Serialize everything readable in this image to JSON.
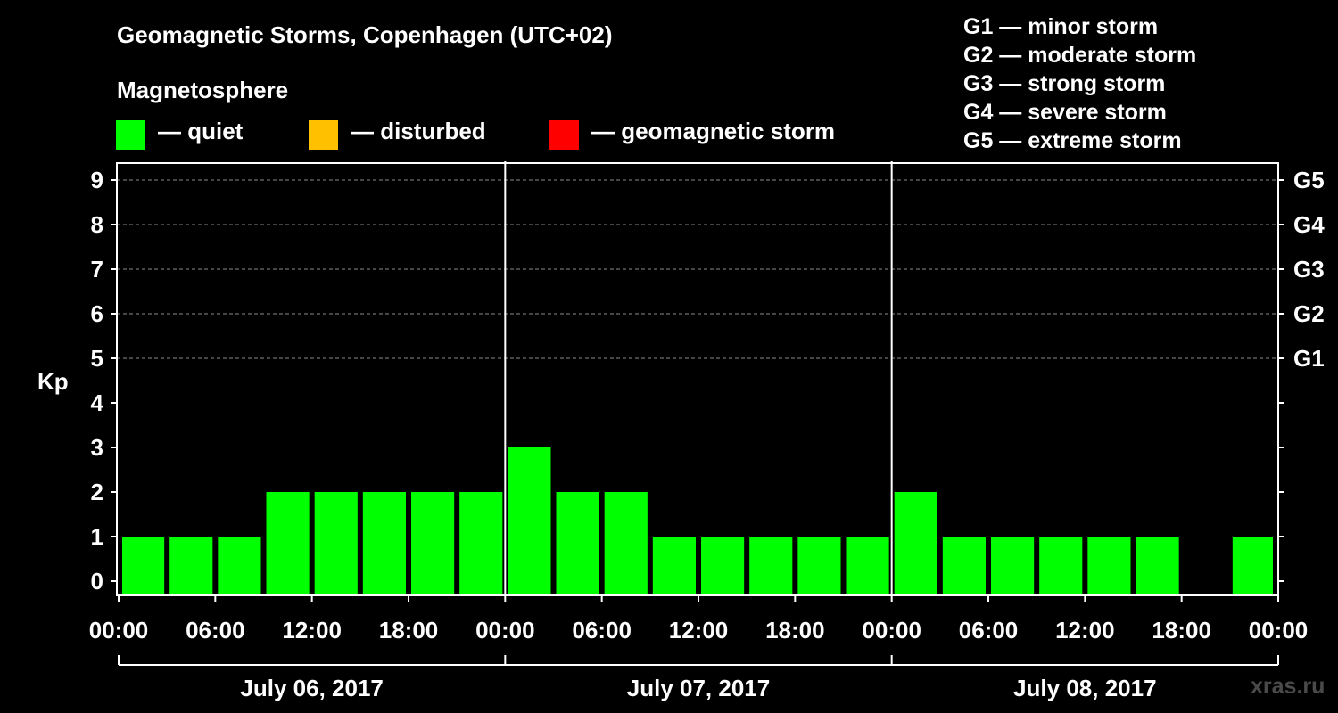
{
  "header": {
    "title": "Geomagnetic Storms, Copenhagen (UTC+02)",
    "subtitle": "Magnetosphere"
  },
  "legend": [
    {
      "label": "— quiet",
      "color": "#00ff00"
    },
    {
      "label": "— disturbed",
      "color": "#ffc000"
    },
    {
      "label": "— geomagnetic storm",
      "color": "#ff0000"
    }
  ],
  "storm_scale": [
    "G1 — minor storm",
    "G2 — moderate storm",
    "G3 — strong storm",
    "G4 — severe storm",
    "G5 — extreme storm"
  ],
  "watermark": "xras.ru",
  "chart_data": {
    "type": "bar",
    "ylabel": "Kp",
    "ylim": [
      0,
      9
    ],
    "yticks": [
      0,
      1,
      2,
      3,
      4,
      5,
      6,
      7,
      8,
      9
    ],
    "right_labels": [
      {
        "y": 5,
        "label": "G1"
      },
      {
        "y": 6,
        "label": "G2"
      },
      {
        "y": 7,
        "label": "G3"
      },
      {
        "y": 8,
        "label": "G4"
      },
      {
        "y": 9,
        "label": "G5"
      }
    ],
    "xlim_hours": [
      0,
      72
    ],
    "xtick_labels": [
      "00:00",
      "06:00",
      "12:00",
      "18:00",
      "00:00",
      "06:00",
      "12:00",
      "18:00",
      "00:00",
      "06:00",
      "12:00",
      "18:00",
      "00:00"
    ],
    "days": [
      "July 06, 2017",
      "July 07, 2017",
      "July 08, 2017"
    ],
    "grid": "dashed horizontal at Kp 5-9",
    "bars": [
      {
        "start": "00:00",
        "value": 1
      },
      {
        "start": "03:00",
        "value": 1
      },
      {
        "start": "06:00",
        "value": 1
      },
      {
        "start": "09:00",
        "value": 2
      },
      {
        "start": "12:00",
        "value": 2
      },
      {
        "start": "15:00",
        "value": 2
      },
      {
        "start": "18:00",
        "value": 2
      },
      {
        "start": "21:00",
        "value": 2
      },
      {
        "start": "00:00",
        "value": 3
      },
      {
        "start": "03:00",
        "value": 2
      },
      {
        "start": "06:00",
        "value": 2
      },
      {
        "start": "09:00",
        "value": 1
      },
      {
        "start": "12:00",
        "value": 1
      },
      {
        "start": "15:00",
        "value": 1
      },
      {
        "start": "18:00",
        "value": 1
      },
      {
        "start": "21:00",
        "value": 1
      },
      {
        "start": "00:00",
        "value": 2
      },
      {
        "start": "03:00",
        "value": 1
      },
      {
        "start": "06:00",
        "value": 1
      },
      {
        "start": "09:00",
        "value": 1
      },
      {
        "start": "12:00",
        "value": 1
      },
      {
        "start": "15:00",
        "value": 1
      },
      {
        "start": "18:00",
        "value": 0
      },
      {
        "start": "21:00",
        "value": 1
      }
    ],
    "bar_color": "#00ff00"
  }
}
